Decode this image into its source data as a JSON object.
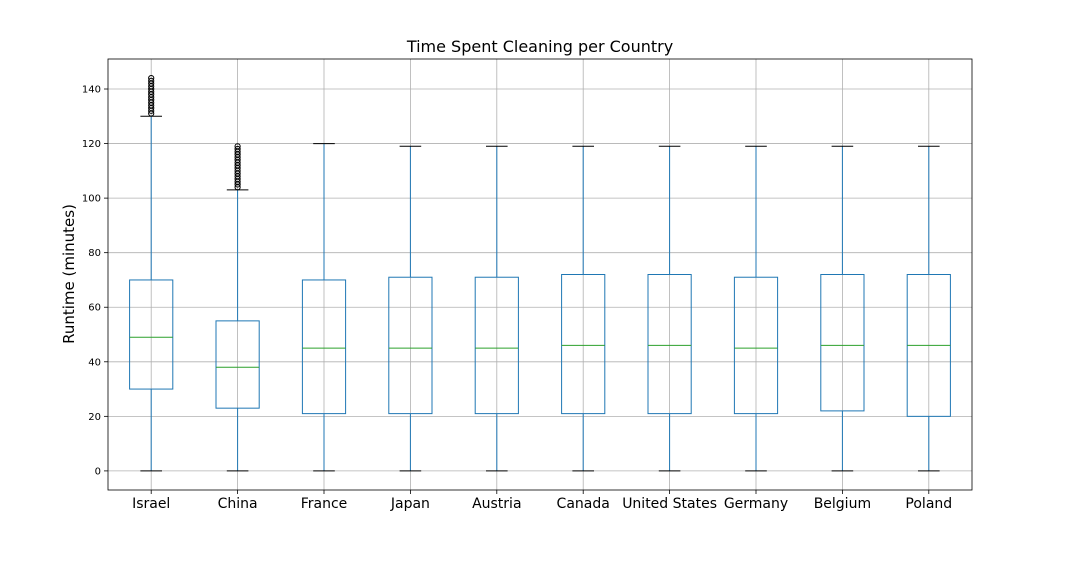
{
  "chart_data": {
    "type": "box",
    "title": "Time Spent Cleaning per Country",
    "xlabel": "",
    "ylabel": "Runtime (minutes)",
    "ylim": [
      -7,
      151
    ],
    "yticks": [
      0,
      20,
      40,
      60,
      80,
      100,
      120,
      140
    ],
    "grid": true,
    "colors": {
      "box": "#1f77b4",
      "median": "#2ca02c",
      "whisker": "#1f77b4",
      "cap": "#000000",
      "flier": "#000000",
      "grid": "#b0b0b0"
    },
    "categories": [
      "Israel",
      "China",
      "France",
      "Japan",
      "Austria",
      "Canada",
      "United States",
      "Germany",
      "Belgium",
      "Poland"
    ],
    "boxes": [
      {
        "name": "Israel",
        "min": 0,
        "q1": 30,
        "median": 49,
        "q3": 70,
        "max": 130,
        "fliers": [
          131,
          132,
          133,
          134,
          135,
          136,
          137,
          138,
          139,
          140,
          141,
          142,
          143,
          144
        ]
      },
      {
        "name": "China",
        "min": 0,
        "q1": 23,
        "median": 38,
        "q3": 55,
        "max": 103,
        "fliers": [
          104,
          105,
          106,
          107,
          108,
          109,
          110,
          111,
          112,
          113,
          114,
          115,
          116,
          117,
          118,
          119
        ]
      },
      {
        "name": "France",
        "min": 0,
        "q1": 21,
        "median": 45,
        "q3": 70,
        "max": 120,
        "fliers": []
      },
      {
        "name": "Japan",
        "min": 0,
        "q1": 21,
        "median": 45,
        "q3": 71,
        "max": 119,
        "fliers": []
      },
      {
        "name": "Austria",
        "min": 0,
        "q1": 21,
        "median": 45,
        "q3": 71,
        "max": 119,
        "fliers": []
      },
      {
        "name": "Canada",
        "min": 0,
        "q1": 21,
        "median": 46,
        "q3": 72,
        "max": 119,
        "fliers": []
      },
      {
        "name": "United States",
        "min": 0,
        "q1": 21,
        "median": 46,
        "q3": 72,
        "max": 119,
        "fliers": []
      },
      {
        "name": "Germany",
        "min": 0,
        "q1": 21,
        "median": 45,
        "q3": 71,
        "max": 119,
        "fliers": []
      },
      {
        "name": "Belgium",
        "min": 0,
        "q1": 22,
        "median": 46,
        "q3": 72,
        "max": 119,
        "fliers": []
      },
      {
        "name": "Poland",
        "min": 0,
        "q1": 20,
        "median": 46,
        "q3": 72,
        "max": 119,
        "fliers": []
      }
    ]
  }
}
